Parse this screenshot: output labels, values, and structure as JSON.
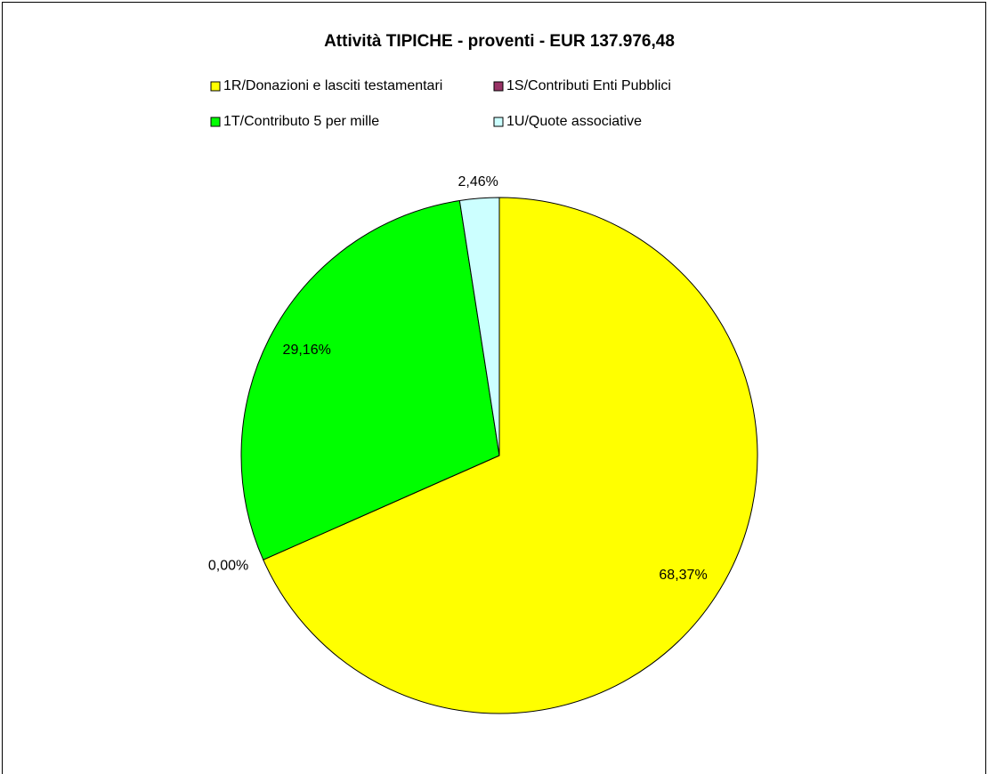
{
  "chart_data": {
    "type": "pie",
    "title": "Attività TIPICHE - proventi  - EUR 137.976,48",
    "categories": [
      "1R/Donazioni e lasciti testamentari",
      "1S/Contributi Enti Pubblici",
      "1T/Contributo 5 per mille",
      "1U/Quote associative"
    ],
    "values": [
      68.37,
      0,
      29.16,
      2.46
    ],
    "value_labels": [
      "68,37%",
      "0,00%",
      "29,16%",
      "2,46%"
    ],
    "colors": [
      "#ffff00",
      "#993366",
      "#00ff00",
      "#ccffff"
    ],
    "legend": "top"
  }
}
